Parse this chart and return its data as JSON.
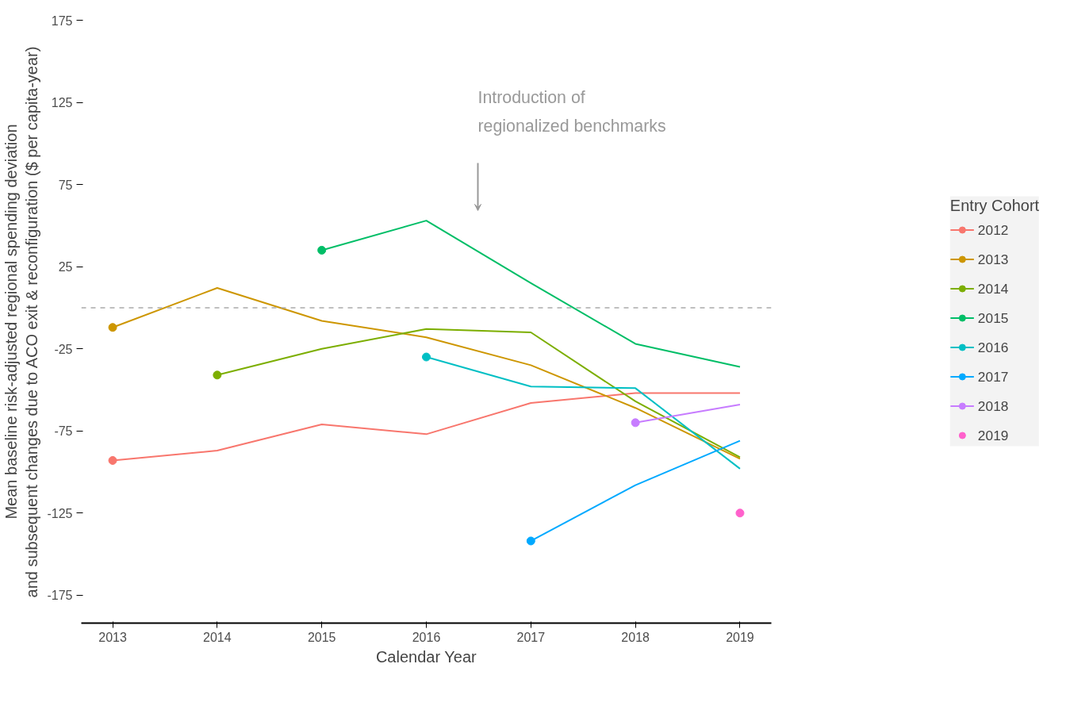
{
  "chart_data": {
    "type": "line",
    "xlabel": "Calendar Year",
    "ylabel": "Mean baseline risk-adjusted regional spending deviation\nand subsequent changes due to ACO exit & reconfiguration ($ per capita-year)",
    "legend_title": "Entry Cohort",
    "legend": "right",
    "grid": false,
    "line_style": "solid",
    "x": [
      2013,
      2014,
      2015,
      2016,
      2017,
      2018,
      2019
    ],
    "xlim": [
      2012.7,
      2019.3
    ],
    "xticks": [
      2013,
      2014,
      2015,
      2016,
      2017,
      2018,
      2019
    ],
    "ylim": [
      -192,
      175
    ],
    "yticks": [
      -175,
      -125,
      -75,
      -25,
      25,
      75,
      125,
      175
    ],
    "ref_lines": [
      {
        "axis": "y",
        "value": 0,
        "label": null,
        "color": "#aaaaaa",
        "line_style": "dashed"
      }
    ],
    "annotations": [
      "Introduction of\nregionalized benchmarks"
    ],
    "series": [
      {
        "name": "2012",
        "color": "#f8766d",
        "values": [
          -93,
          -87,
          -71,
          -77,
          -58,
          -52,
          -52
        ]
      },
      {
        "name": "2013",
        "color": "#cd9600",
        "values": [
          -12,
          12,
          -8,
          -18,
          -35,
          -61,
          -92
        ]
      },
      {
        "name": "2014",
        "color": "#7cae00",
        "values": [
          null,
          -41,
          -25,
          -13,
          -15,
          -57,
          -91
        ]
      },
      {
        "name": "2015",
        "color": "#00be67",
        "values": [
          null,
          null,
          35,
          53,
          15,
          -22,
          -36
        ]
      },
      {
        "name": "2016",
        "color": "#00bfc4",
        "values": [
          null,
          null,
          null,
          -30,
          -48,
          -49,
          -98
        ]
      },
      {
        "name": "2017",
        "color": "#00a9ff",
        "values": [
          null,
          null,
          null,
          null,
          -142,
          -108,
          -81
        ]
      },
      {
        "name": "2018",
        "color": "#c77cff",
        "values": [
          null,
          null,
          null,
          null,
          null,
          -70,
          -59
        ]
      },
      {
        "name": "2019",
        "type": "scatter",
        "marker": "circle",
        "color": "#ff61cc",
        "x": [
          2019
        ],
        "values": [
          -125
        ]
      },
      {
        "type": "scatter",
        "marker": "circle",
        "color": "#f8766d",
        "x": [
          2013
        ],
        "values": [
          -93
        ]
      },
      {
        "type": "scatter",
        "marker": "circle",
        "color": "#cd9600",
        "x": [
          2013
        ],
        "values": [
          -12
        ]
      },
      {
        "type": "scatter",
        "marker": "circle",
        "color": "#7cae00",
        "x": [
          2014
        ],
        "values": [
          -41
        ]
      },
      {
        "type": "scatter",
        "marker": "circle",
        "color": "#00be67",
        "x": [
          2015
        ],
        "values": [
          35
        ]
      },
      {
        "type": "scatter",
        "marker": "circle",
        "color": "#00bfc4",
        "x": [
          2016
        ],
        "values": [
          -30
        ]
      },
      {
        "type": "scatter",
        "marker": "circle",
        "color": "#00a9ff",
        "x": [
          2017
        ],
        "values": [
          -142
        ]
      },
      {
        "type": "scatter",
        "marker": "circle",
        "color": "#c77cff",
        "x": [
          2018
        ],
        "values": [
          -70
        ]
      }
    ]
  }
}
